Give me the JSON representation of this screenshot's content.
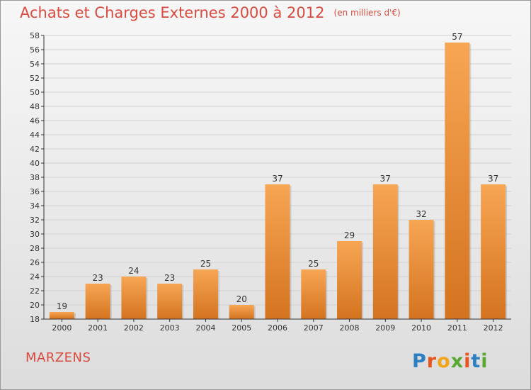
{
  "title": "Achats et Charges Externes 2000 à 2012",
  "unit_note": "(en milliers d'€)",
  "commune": "MARZENS",
  "logo_text": "Proxiti",
  "colors": {
    "title": "#d94b3f",
    "bar_light": "#f7a654",
    "bar_dark": "#d4731f",
    "axis": "#333333",
    "grid": "#d2d2d2"
  },
  "chart_data": {
    "type": "bar",
    "title": "Achats et Charges Externes 2000 à 2012",
    "categories": [
      "2000",
      "2001",
      "2002",
      "2003",
      "2004",
      "2005",
      "2006",
      "2007",
      "2008",
      "2009",
      "2010",
      "2011",
      "2012"
    ],
    "values": [
      19,
      23,
      24,
      23,
      25,
      20,
      37,
      25,
      29,
      37,
      32,
      57,
      37
    ],
    "ylim": [
      18,
      58
    ],
    "yticks": [
      18,
      20,
      22,
      24,
      26,
      28,
      30,
      32,
      34,
      36,
      38,
      40,
      42,
      44,
      46,
      48,
      50,
      52,
      54,
      56,
      58
    ],
    "grid": true,
    "data_labels": true
  }
}
